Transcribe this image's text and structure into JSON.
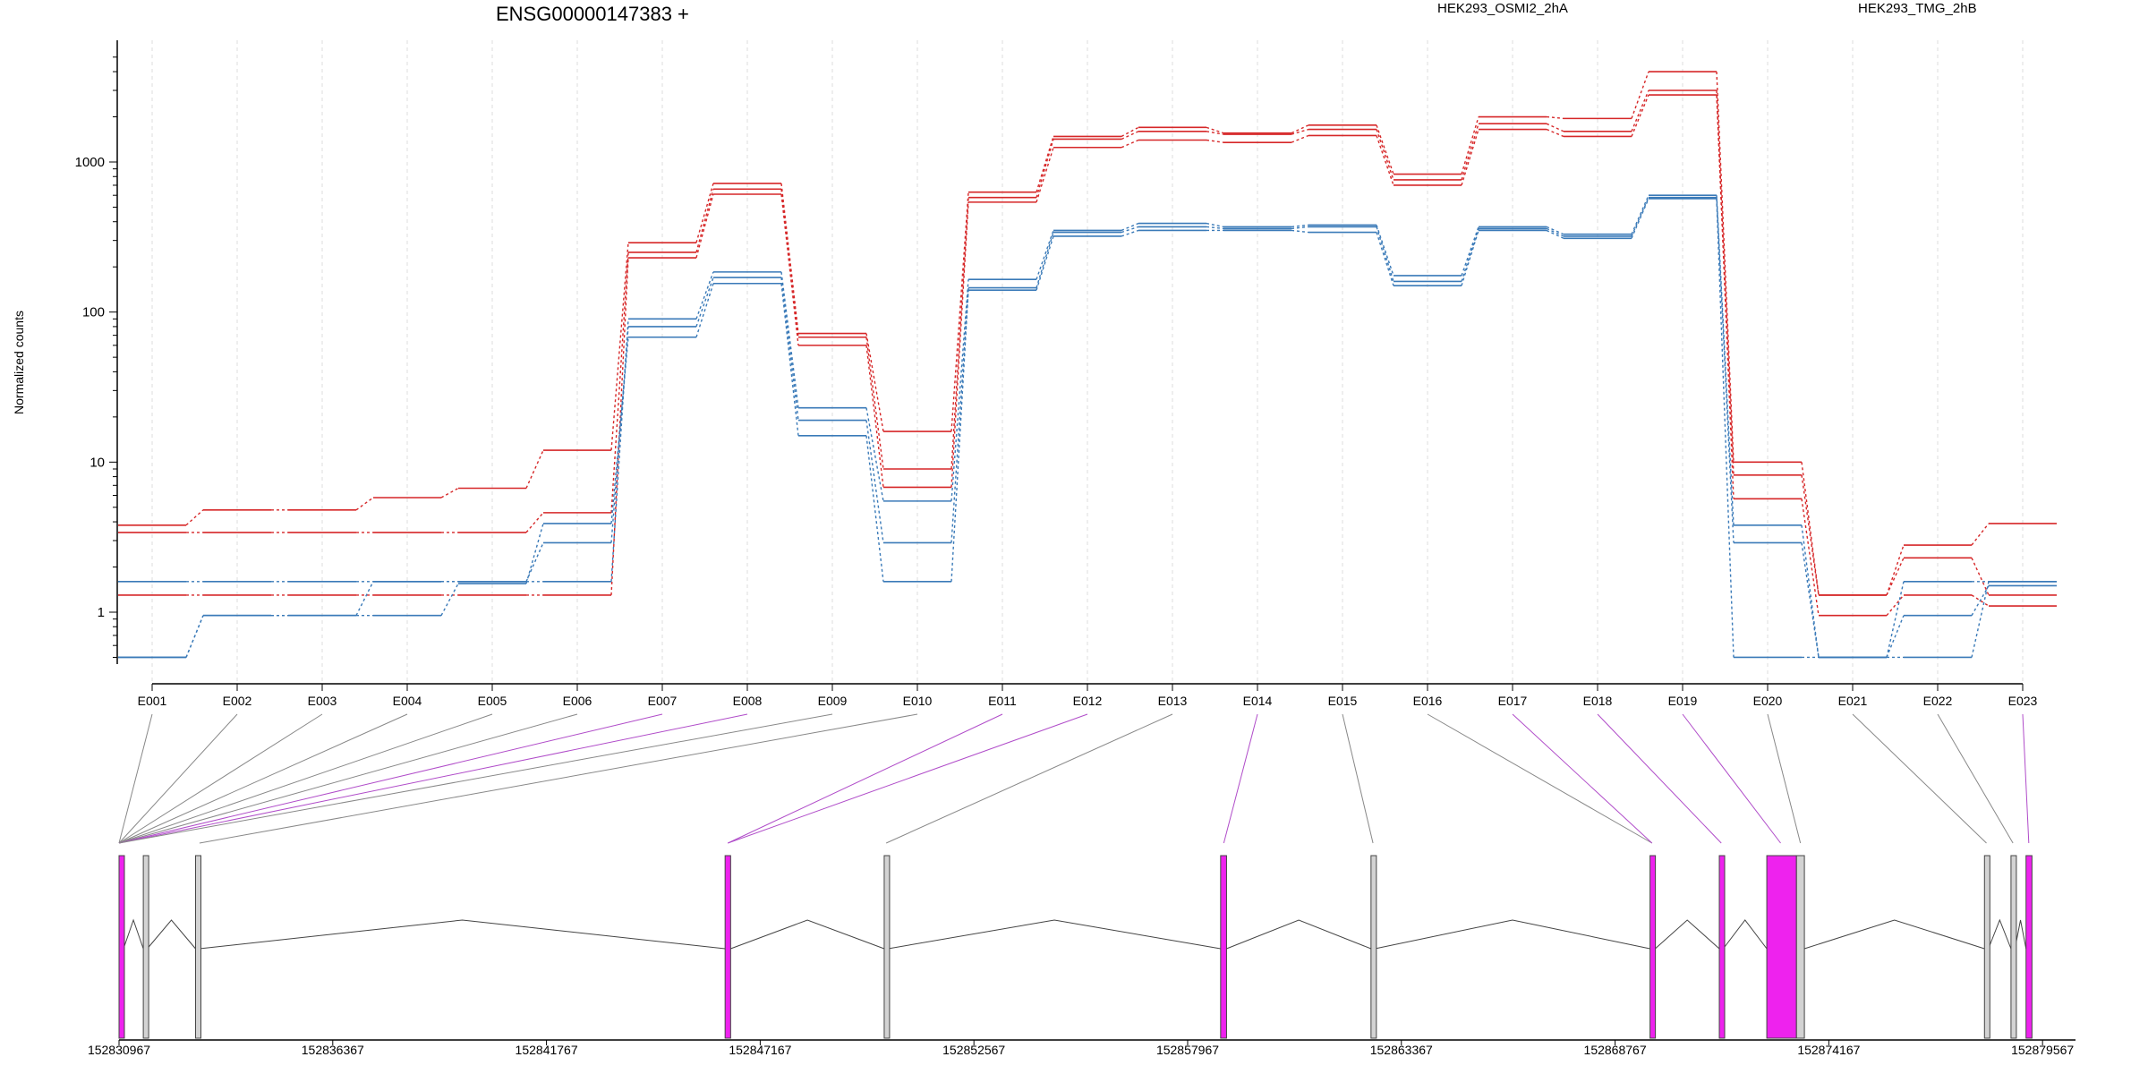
{
  "chart_data": {
    "type": "line",
    "title": "ENSG00000147383 +",
    "ylabel": "Normalized counts",
    "y_scale": "log",
    "y_ticks": [
      1,
      10,
      100,
      1000
    ],
    "ylim": [
      0.5,
      5000
    ],
    "grid": "vertical dashed at each exon",
    "exons": [
      "E001",
      "E002",
      "E003",
      "E004",
      "E005",
      "E006",
      "E007",
      "E008",
      "E009",
      "E010",
      "E011",
      "E012",
      "E013",
      "E014",
      "E015",
      "E016",
      "E017",
      "E018",
      "E019",
      "E020",
      "E021",
      "E022",
      "E023"
    ],
    "legend": [
      {
        "label": "HEK293_OSMI2_2hA",
        "color": "#d62728"
      },
      {
        "label": "HEK293_TMG_2hB",
        "color": "#3a7ab8"
      }
    ],
    "series": [
      {
        "group": "HEK293_OSMI2_2hA",
        "color": "#d62728",
        "values": [
          3.8,
          4.8,
          4.8,
          5.8,
          6.7,
          12,
          290,
          720,
          72,
          16,
          630,
          1480,
          1700,
          1560,
          1760,
          830,
          2000,
          1950,
          4000,
          10,
          1.3,
          2.8,
          3.9
        ]
      },
      {
        "group": "HEK293_OSMI2_2hA",
        "color": "#d62728",
        "values": [
          3.4,
          3.4,
          3.4,
          3.4,
          3.4,
          4.6,
          250,
          660,
          68,
          9,
          580,
          1420,
          1600,
          1530,
          1650,
          760,
          1800,
          1600,
          3000,
          8.2,
          1.3,
          2.3,
          1.3
        ]
      },
      {
        "group": "HEK293_OSMI2_2hA",
        "color": "#d62728",
        "values": [
          1.3,
          1.3,
          1.3,
          1.3,
          1.3,
          1.3,
          230,
          610,
          60,
          6.8,
          540,
          1250,
          1400,
          1350,
          1500,
          700,
          1650,
          1480,
          2800,
          5.7,
          0.95,
          1.3,
          1.1
        ]
      },
      {
        "group": "HEK293_TMG_2hB",
        "color": "#3a7ab8",
        "values": [
          1.6,
          1.6,
          1.6,
          1.6,
          1.6,
          1.6,
          90,
          185,
          23,
          5.5,
          165,
          350,
          390,
          370,
          380,
          175,
          370,
          330,
          600,
          3.8,
          0.5,
          1.6,
          1.6
        ]
      },
      {
        "group": "HEK293_TMG_2hB",
        "color": "#3a7ab8",
        "values": [
          0.5,
          0.95,
          0.95,
          1.6,
          1.6,
          2.9,
          80,
          170,
          19,
          2.9,
          145,
          340,
          370,
          360,
          370,
          160,
          360,
          320,
          580,
          2.9,
          0.5,
          0.95,
          1.5
        ]
      },
      {
        "group": "HEK293_TMG_2hB",
        "color": "#3a7ab8",
        "values": [
          0.5,
          0.95,
          0.95,
          0.95,
          1.55,
          3.9,
          68,
          155,
          15,
          1.6,
          140,
          320,
          350,
          350,
          340,
          150,
          350,
          310,
          570,
          0.5,
          0.5,
          0.5,
          1.6
        ]
      }
    ],
    "genome_axis": {
      "start": 152830967,
      "end": 152880400,
      "tick_labels": [
        "152830967",
        "152836367",
        "152841767",
        "152847167",
        "152852567",
        "152857967",
        "152863367",
        "152868767",
        "152874167",
        "152879567"
      ],
      "exon_models": [
        {
          "start": 152830967,
          "end": 152831080,
          "highlight": true
        },
        {
          "start": 152831580,
          "end": 152831680,
          "highlight": false
        },
        {
          "start": 152832900,
          "end": 152833000,
          "highlight": false
        },
        {
          "start": 152846280,
          "end": 152846420,
          "highlight": true
        },
        {
          "start": 152850300,
          "end": 152850400,
          "highlight": false
        },
        {
          "start": 152858800,
          "end": 152858950,
          "highlight": true
        },
        {
          "start": 152862600,
          "end": 152862700,
          "highlight": false
        },
        {
          "start": 152869650,
          "end": 152869780,
          "highlight": true
        },
        {
          "start": 152871400,
          "end": 152871500,
          "highlight": true
        },
        {
          "start": 152872600,
          "end": 152873350,
          "highlight": true
        },
        {
          "start": 152873350,
          "end": 152873550,
          "highlight": false
        },
        {
          "start": 152878100,
          "end": 152878200,
          "highlight": false
        },
        {
          "start": 152878770,
          "end": 152878870,
          "highlight": false
        },
        {
          "start": 152879150,
          "end": 152879300,
          "highlight": true
        }
      ],
      "exon_links": [
        {
          "exon": "E001",
          "to": 152830967,
          "highlight": false
        },
        {
          "exon": "E002",
          "to": 152830967,
          "highlight": false
        },
        {
          "exon": "E003",
          "to": 152830967,
          "highlight": false
        },
        {
          "exon": "E004",
          "to": 152830967,
          "highlight": false
        },
        {
          "exon": "E005",
          "to": 152830967,
          "highlight": false
        },
        {
          "exon": "E006",
          "to": 152830967,
          "highlight": false
        },
        {
          "exon": "E007",
          "to": 152830967,
          "highlight": true
        },
        {
          "exon": "E008",
          "to": 152830967,
          "highlight": true
        },
        {
          "exon": "E009",
          "to": 152830967,
          "highlight": false
        },
        {
          "exon": "E010",
          "to": 152833000,
          "highlight": false
        },
        {
          "exon": "E011",
          "to": 152846350,
          "highlight": true
        },
        {
          "exon": "E012",
          "to": 152846350,
          "highlight": true
        },
        {
          "exon": "E013",
          "to": 152850350,
          "highlight": false
        },
        {
          "exon": "E014",
          "to": 152858880,
          "highlight": true
        },
        {
          "exon": "E015",
          "to": 152862650,
          "highlight": false
        },
        {
          "exon": "E016",
          "to": 152869700,
          "highlight": false
        },
        {
          "exon": "E017",
          "to": 152869700,
          "highlight": true
        },
        {
          "exon": "E018",
          "to": 152871450,
          "highlight": true
        },
        {
          "exon": "E019",
          "to": 152872950,
          "highlight": true
        },
        {
          "exon": "E020",
          "to": 152873450,
          "highlight": false
        },
        {
          "exon": "E021",
          "to": 152878150,
          "highlight": false
        },
        {
          "exon": "E022",
          "to": 152878820,
          "highlight": false
        },
        {
          "exon": "E023",
          "to": 152879220,
          "highlight": true
        }
      ]
    }
  }
}
